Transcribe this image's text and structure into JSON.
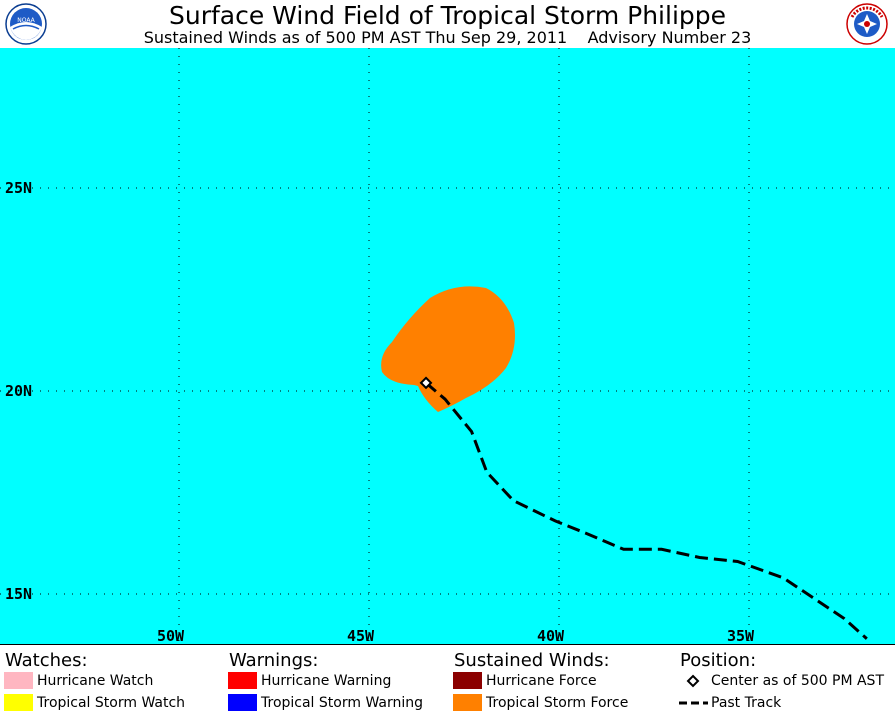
{
  "header": {
    "title": "Surface Wind Field of Tropical Storm Philippe",
    "subtitle": "Sustained Winds as of 500 PM AST Thu Sep 29, 2011    Advisory Number 23",
    "left_logo": "NOAA",
    "right_logo": "NATIONAL WEATHER SERVICE"
  },
  "map": {
    "background_color": "#00ffff",
    "latitude_labels": [
      "25N",
      "20N",
      "15N"
    ],
    "longitude_labels": [
      "50W",
      "45W",
      "40W",
      "35W"
    ],
    "grid": "dotted",
    "tropical_storm_force_color": "#ff8000",
    "storm_center": {
      "lat": 20.2,
      "lon": -43.5,
      "marker": "diamond"
    },
    "past_track": [
      {
        "lat": 20.2,
        "lon": -43.5
      },
      {
        "lat": 19.8,
        "lon": -43.0
      },
      {
        "lat": 19.0,
        "lon": -42.3
      },
      {
        "lat": 18.0,
        "lon": -41.9
      },
      {
        "lat": 17.3,
        "lon": -41.2
      },
      {
        "lat": 16.8,
        "lon": -40.1
      },
      {
        "lat": 16.5,
        "lon": -39.3
      },
      {
        "lat": 16.1,
        "lon": -38.3
      },
      {
        "lat": 16.1,
        "lon": -37.3
      },
      {
        "lat": 15.9,
        "lon": -36.3
      },
      {
        "lat": 15.8,
        "lon": -35.3
      },
      {
        "lat": 15.4,
        "lon": -34.1
      },
      {
        "lat": 14.4,
        "lon": -32.5
      },
      {
        "lat": 13.9,
        "lon": -31.9
      }
    ]
  },
  "legend": {
    "watches": {
      "heading": "Watches:",
      "items": [
        {
          "label": "Hurricane Watch",
          "color": "#ffb6c1"
        },
        {
          "label": "Tropical Storm Watch",
          "color": "#ffff00"
        }
      ]
    },
    "warnings": {
      "heading": "Warnings:",
      "items": [
        {
          "label": "Hurricane Warning",
          "color": "#ff0000"
        },
        {
          "label": "Tropical Storm Warning",
          "color": "#0000ff"
        }
      ]
    },
    "winds": {
      "heading": "Sustained Winds:",
      "items": [
        {
          "label": "Hurricane Force",
          "color": "#8b0000"
        },
        {
          "label": "Tropical Storm Force",
          "color": "#ff8000"
        }
      ]
    },
    "position": {
      "heading": "Position:",
      "items": [
        {
          "label": "Center as of 500 PM AST",
          "icon": "diamond-icon"
        },
        {
          "label": "Past Track",
          "icon": "dashed-line-icon"
        }
      ]
    }
  }
}
